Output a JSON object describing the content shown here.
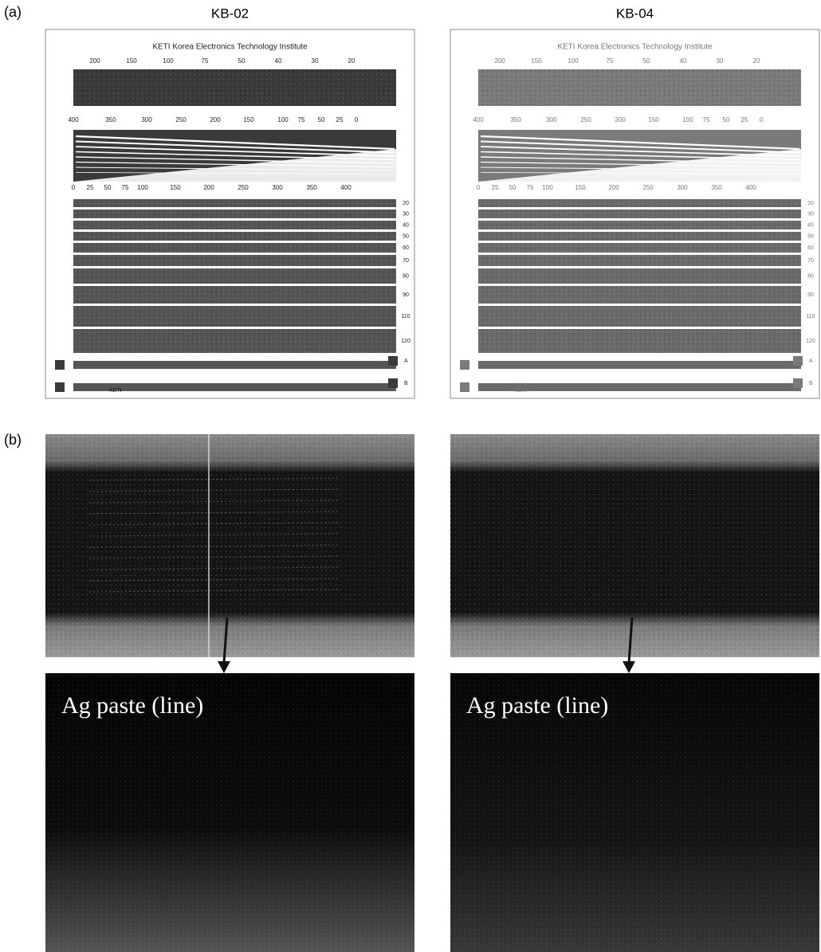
{
  "labels": {
    "a": "(a)",
    "b": "(b)"
  },
  "panels": [
    {
      "title": "KB-02",
      "zoom_label": "Ag paste (line)"
    },
    {
      "title": "KB-04",
      "zoom_label": "Ag paste (line)"
    }
  ],
  "pattern": {
    "header": "KETI Korea Electronics Technology Institute",
    "top_numbers": [
      200,
      150,
      100,
      75,
      50,
      40,
      30,
      20
    ],
    "wedge_top_numbers": [
      400,
      350,
      300,
      250,
      200,
      150,
      100,
      75,
      50,
      25,
      0
    ],
    "wedge_bottom_numbers": [
      0,
      25,
      50,
      75,
      100,
      150,
      200,
      250,
      300,
      350,
      400
    ],
    "stripe_labels": [
      20,
      30,
      40,
      50,
      60,
      70,
      80,
      90,
      110,
      120
    ],
    "pad_labels": [
      "A",
      "B"
    ],
    "footer": "KETI"
  }
}
